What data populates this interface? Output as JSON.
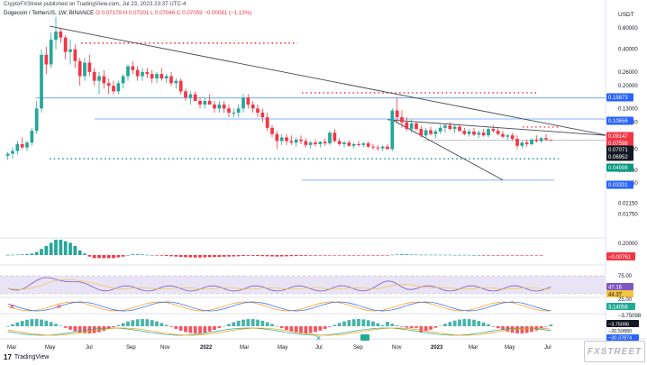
{
  "header": {
    "publisher": "CryptoFXStreet published on TradingView.com, Jul 23, 2023 23:37 UTC-4"
  },
  "legend": {
    "symbol": "Dogecoin / TetherUS, 1W, BINANCE",
    "open": "O 0.07179",
    "high": "H 0.07201",
    "low": "L 0.07046",
    "close": "C 0.07059",
    "change": "−0.00081 (−1.13%)"
  },
  "footer": {
    "brand": "TradingView",
    "logo": "17"
  },
  "watermark": {
    "text": "FXSTREET"
  },
  "colors": {
    "up": "#26a69a",
    "down": "#f23645",
    "ma_line": "#434651",
    "level_blue": "#2962ff",
    "dots_red": "#f23645",
    "dots_green": "#26a69a",
    "rsi": "#7e57c2",
    "band_fill": "#e9e4f5",
    "osc_orange": "#ff9800"
  },
  "chart_data": {
    "type": "candlestick",
    "currency": "USDT",
    "scale": "log",
    "ylim": [
      0.0115,
      0.75
    ],
    "x_ticks": [
      "Mar",
      "May",
      "Jul",
      "Sep",
      "Nov",
      "2022",
      "Mar",
      "May",
      "Jul",
      "Sep",
      "Nov",
      "2023",
      "Mar",
      "May",
      "Jul"
    ],
    "y_ticks": [
      "0.60000",
      "0.40000",
      "0.26000",
      "0.20000",
      "0.13000",
      "0.10000",
      "0.06000",
      "0.04000",
      "0.03150",
      "0.02150",
      "0.01750"
    ],
    "price_tags": [
      {
        "value": "0.15873",
        "type": "blue"
      },
      {
        "value": "0.10656",
        "type": "blue"
      },
      {
        "value": "0.09147",
        "type": "red"
      },
      {
        "value": "0.07598",
        "type": "red"
      },
      {
        "value": "0.07071",
        "type": "dark"
      },
      {
        "value": "0.06952",
        "type": "dark"
      },
      {
        "value": "0.04998",
        "type": "green"
      },
      {
        "value": "0.03331",
        "type": "blue"
      }
    ],
    "candles": [
      [
        0.053,
        0.057,
        0.049,
        0.055
      ],
      [
        0.055,
        0.062,
        0.05,
        0.058
      ],
      [
        0.058,
        0.07,
        0.054,
        0.066
      ],
      [
        0.066,
        0.075,
        0.06,
        0.062
      ],
      [
        0.062,
        0.07,
        0.058,
        0.068
      ],
      [
        0.068,
        0.09,
        0.064,
        0.085
      ],
      [
        0.085,
        0.15,
        0.08,
        0.13
      ],
      [
        0.13,
        0.4,
        0.12,
        0.36
      ],
      [
        0.36,
        0.42,
        0.25,
        0.3
      ],
      [
        0.3,
        0.55,
        0.28,
        0.48
      ],
      [
        0.48,
        0.74,
        0.4,
        0.56
      ],
      [
        0.56,
        0.6,
        0.45,
        0.5
      ],
      [
        0.5,
        0.52,
        0.33,
        0.38
      ],
      [
        0.38,
        0.48,
        0.3,
        0.4
      ],
      [
        0.4,
        0.44,
        0.28,
        0.32
      ],
      [
        0.32,
        0.34,
        0.2,
        0.24
      ],
      [
        0.24,
        0.34,
        0.22,
        0.31
      ],
      [
        0.31,
        0.36,
        0.24,
        0.26
      ],
      [
        0.26,
        0.28,
        0.2,
        0.22
      ],
      [
        0.22,
        0.26,
        0.17,
        0.24
      ],
      [
        0.24,
        0.27,
        0.19,
        0.21
      ],
      [
        0.21,
        0.23,
        0.17,
        0.2
      ],
      [
        0.2,
        0.22,
        0.17,
        0.18
      ],
      [
        0.18,
        0.22,
        0.17,
        0.21
      ],
      [
        0.21,
        0.25,
        0.19,
        0.24
      ],
      [
        0.24,
        0.3,
        0.22,
        0.29
      ],
      [
        0.29,
        0.32,
        0.25,
        0.27
      ],
      [
        0.27,
        0.29,
        0.22,
        0.24
      ],
      [
        0.24,
        0.28,
        0.22,
        0.26
      ],
      [
        0.26,
        0.28,
        0.23,
        0.25
      ],
      [
        0.25,
        0.27,
        0.21,
        0.23
      ],
      [
        0.23,
        0.26,
        0.21,
        0.25
      ],
      [
        0.25,
        0.28,
        0.22,
        0.23
      ],
      [
        0.23,
        0.25,
        0.21,
        0.24
      ],
      [
        0.24,
        0.26,
        0.2,
        0.21
      ],
      [
        0.21,
        0.23,
        0.19,
        0.22
      ],
      [
        0.22,
        0.23,
        0.17,
        0.18
      ],
      [
        0.18,
        0.19,
        0.15,
        0.16
      ],
      [
        0.16,
        0.18,
        0.14,
        0.17
      ],
      [
        0.17,
        0.18,
        0.15,
        0.15
      ],
      [
        0.15,
        0.16,
        0.13,
        0.14
      ],
      [
        0.14,
        0.16,
        0.13,
        0.15
      ],
      [
        0.15,
        0.17,
        0.14,
        0.14
      ],
      [
        0.14,
        0.15,
        0.12,
        0.13
      ],
      [
        0.13,
        0.15,
        0.12,
        0.14
      ],
      [
        0.14,
        0.15,
        0.12,
        0.13
      ],
      [
        0.13,
        0.14,
        0.11,
        0.12
      ],
      [
        0.12,
        0.13,
        0.11,
        0.12
      ],
      [
        0.12,
        0.14,
        0.11,
        0.13
      ],
      [
        0.13,
        0.17,
        0.12,
        0.16
      ],
      [
        0.16,
        0.17,
        0.13,
        0.14
      ],
      [
        0.14,
        0.15,
        0.12,
        0.13
      ],
      [
        0.13,
        0.14,
        0.11,
        0.12
      ],
      [
        0.12,
        0.13,
        0.1,
        0.11
      ],
      [
        0.11,
        0.12,
        0.085,
        0.09
      ],
      [
        0.09,
        0.095,
        0.075,
        0.08
      ],
      [
        0.08,
        0.085,
        0.06,
        0.07
      ],
      [
        0.07,
        0.08,
        0.065,
        0.075
      ],
      [
        0.075,
        0.08,
        0.065,
        0.07
      ],
      [
        0.07,
        0.078,
        0.065,
        0.068
      ],
      [
        0.068,
        0.075,
        0.063,
        0.072
      ],
      [
        0.072,
        0.078,
        0.066,
        0.07
      ],
      [
        0.07,
        0.074,
        0.062,
        0.065
      ],
      [
        0.065,
        0.07,
        0.061,
        0.068
      ],
      [
        0.068,
        0.072,
        0.063,
        0.066
      ],
      [
        0.066,
        0.07,
        0.062,
        0.069
      ],
      [
        0.069,
        0.073,
        0.064,
        0.067
      ],
      [
        0.067,
        0.085,
        0.065,
        0.082
      ],
      [
        0.082,
        0.088,
        0.068,
        0.07
      ],
      [
        0.07,
        0.074,
        0.064,
        0.066
      ],
      [
        0.066,
        0.07,
        0.062,
        0.068
      ],
      [
        0.068,
        0.071,
        0.063,
        0.064
      ],
      [
        0.064,
        0.068,
        0.061,
        0.066
      ],
      [
        0.066,
        0.07,
        0.063,
        0.065
      ],
      [
        0.065,
        0.069,
        0.062,
        0.067
      ],
      [
        0.067,
        0.07,
        0.061,
        0.063
      ],
      [
        0.063,
        0.066,
        0.059,
        0.062
      ],
      [
        0.062,
        0.065,
        0.058,
        0.061
      ],
      [
        0.061,
        0.064,
        0.058,
        0.063
      ],
      [
        0.063,
        0.066,
        0.06,
        0.06
      ],
      [
        0.06,
        0.13,
        0.058,
        0.125
      ],
      [
        0.125,
        0.16,
        0.1,
        0.11
      ],
      [
        0.11,
        0.125,
        0.09,
        0.1
      ],
      [
        0.1,
        0.11,
        0.085,
        0.088
      ],
      [
        0.088,
        0.105,
        0.082,
        0.098
      ],
      [
        0.098,
        0.102,
        0.085,
        0.088
      ],
      [
        0.088,
        0.093,
        0.075,
        0.078
      ],
      [
        0.078,
        0.09,
        0.074,
        0.086
      ],
      [
        0.086,
        0.092,
        0.078,
        0.08
      ],
      [
        0.08,
        0.088,
        0.074,
        0.084
      ],
      [
        0.084,
        0.095,
        0.08,
        0.09
      ],
      [
        0.09,
        0.096,
        0.082,
        0.094
      ],
      [
        0.094,
        0.1,
        0.086,
        0.088
      ],
      [
        0.088,
        0.095,
        0.082,
        0.092
      ],
      [
        0.092,
        0.097,
        0.083,
        0.085
      ],
      [
        0.085,
        0.09,
        0.078,
        0.08
      ],
      [
        0.08,
        0.088,
        0.076,
        0.084
      ],
      [
        0.084,
        0.09,
        0.077,
        0.079
      ],
      [
        0.079,
        0.086,
        0.074,
        0.082
      ],
      [
        0.082,
        0.088,
        0.076,
        0.078
      ],
      [
        0.078,
        0.092,
        0.075,
        0.088
      ],
      [
        0.088,
        0.095,
        0.082,
        0.085
      ],
      [
        0.085,
        0.09,
        0.078,
        0.08
      ],
      [
        0.08,
        0.085,
        0.074,
        0.076
      ],
      [
        0.076,
        0.08,
        0.072,
        0.078
      ],
      [
        0.078,
        0.082,
        0.07,
        0.073
      ],
      [
        0.073,
        0.078,
        0.06,
        0.064
      ],
      [
        0.064,
        0.07,
        0.061,
        0.068
      ],
      [
        0.068,
        0.072,
        0.063,
        0.066
      ],
      [
        0.066,
        0.074,
        0.064,
        0.072
      ],
      [
        0.072,
        0.078,
        0.068,
        0.07
      ],
      [
        0.07,
        0.076,
        0.068,
        0.074
      ],
      [
        0.074,
        0.08,
        0.07,
        0.072
      ],
      [
        0.07179,
        0.07201,
        0.07046,
        0.07059
      ]
    ],
    "macd_hist": [
      0.001,
      0.002,
      0.003,
      0.004,
      0.006,
      0.01,
      0.02,
      0.04,
      0.06,
      0.08,
      0.1,
      0.1,
      0.09,
      0.08,
      0.06,
      0.03,
      0.01,
      -0.01,
      -0.02,
      -0.02,
      -0.02,
      -0.02,
      -0.02,
      -0.015,
      -0.01,
      0.0,
      0.005,
      0.005,
      0.004,
      0.002,
      0.0,
      -0.002,
      -0.004,
      -0.006,
      -0.008,
      -0.01,
      -0.012,
      -0.014,
      -0.015,
      -0.016,
      -0.016,
      -0.015,
      -0.014,
      -0.013,
      -0.012,
      -0.011,
      -0.01,
      -0.009,
      -0.008,
      -0.006,
      -0.005,
      -0.005,
      -0.006,
      -0.007,
      -0.008,
      -0.009,
      -0.01,
      -0.009,
      -0.008,
      -0.007,
      -0.006,
      -0.005,
      -0.005,
      -0.004,
      -0.004,
      -0.003,
      -0.003,
      -0.002,
      -0.002,
      -0.002,
      -0.002,
      -0.002,
      -0.002,
      -0.002,
      -0.002,
      -0.002,
      -0.002,
      -0.002,
      -0.002,
      -0.002,
      0.002,
      0.004,
      0.005,
      0.005,
      0.004,
      0.003,
      0.002,
      0.002,
      0.002,
      0.002,
      0.002,
      0.002,
      0.002,
      0.001,
      0.001,
      0.001,
      0.001,
      0.0,
      0.0,
      -0.001,
      -0.001,
      -0.001,
      -0.001,
      -0.001,
      -0.001,
      -0.001,
      -0.001,
      -0.001,
      -0.001,
      -0.001,
      -0.001,
      -0.001
    ],
    "macd_value": "−0.00761",
    "macd_axis": "0.20000",
    "rsi_value": "47.16",
    "rsi_ma_value": "44.37",
    "rsi_ticks": [
      "75.00",
      "25.00"
    ],
    "osc_values": [
      "3.14058",
      "−3.75098",
      "−3.75096",
      "−20.59880",
      "−30.37874"
    ],
    "osc_tick": "3.75096"
  }
}
